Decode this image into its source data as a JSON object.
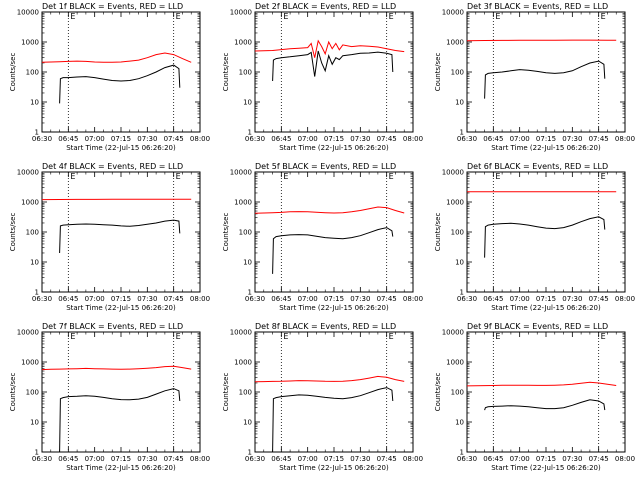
{
  "figure": {
    "ylabel": "Counts/sec",
    "xlabel": "Start Time (22-Jul-15 06:26:20)",
    "x_ticks": [
      "06:30",
      "06:45",
      "07:00",
      "07:15",
      "07:30",
      "07:45",
      "08:00"
    ],
    "y_ticks": [
      "1",
      "10",
      "100",
      "1000",
      "10000"
    ],
    "marker_labels": [
      "E",
      "E"
    ],
    "colors": {
      "events": "#000000",
      "lld": "#ff0000",
      "axes": "#000000",
      "background": "#ffffff"
    }
  },
  "chart_data": [
    {
      "type": "line",
      "title": "Det 1f BLACK = Events, RED = LLD",
      "xlabel": "Start Time (22-Jul-15 06:26:20)",
      "ylabel": "Counts/sec",
      "x_unit": "minutes after 06:30",
      "xlim": [
        0,
        90
      ],
      "ylim": [
        1,
        10000
      ],
      "yscale": "log",
      "vlines": [
        15,
        75
      ],
      "series": [
        {
          "color": "#ff0000",
          "x": [
            0,
            5,
            10,
            15,
            20,
            25,
            30,
            35,
            40,
            45,
            50,
            55,
            60,
            65,
            70,
            75,
            80,
            85
          ],
          "y": [
            210,
            215,
            220,
            225,
            230,
            225,
            215,
            210,
            210,
            215,
            230,
            250,
            300,
            380,
            430,
            380,
            280,
            210
          ]
        },
        {
          "color": "#000000",
          "x": [
            10,
            10.5,
            12,
            15,
            20,
            25,
            30,
            35,
            40,
            45,
            50,
            55,
            60,
            65,
            70,
            75,
            78,
            78.5
          ],
          "y": [
            9,
            60,
            65,
            65,
            68,
            70,
            65,
            58,
            52,
            50,
            52,
            60,
            75,
            100,
            140,
            170,
            130,
            30
          ]
        }
      ]
    },
    {
      "type": "line",
      "title": "Det 2f BLACK = Events, RED = LLD",
      "xlabel": "Start Time (22-Jul-15 06:26:20)",
      "ylabel": "Counts/sec",
      "x_unit": "minutes after 06:30",
      "xlim": [
        0,
        90
      ],
      "ylim": [
        1,
        10000
      ],
      "yscale": "log",
      "vlines": [
        15,
        75
      ],
      "series": [
        {
          "color": "#ff0000",
          "x": [
            0,
            5,
            10,
            15,
            20,
            25,
            30,
            32,
            34,
            36,
            38,
            40,
            42,
            44,
            46,
            48,
            50,
            55,
            60,
            65,
            70,
            75,
            80,
            85
          ],
          "y": [
            500,
            510,
            520,
            560,
            600,
            620,
            650,
            900,
            300,
            1100,
            700,
            400,
            1000,
            600,
            900,
            550,
            800,
            700,
            750,
            720,
            680,
            600,
            520,
            480
          ]
        },
        {
          "color": "#000000",
          "x": [
            10,
            10.5,
            12,
            15,
            20,
            25,
            30,
            32,
            34,
            36,
            38,
            40,
            42,
            44,
            46,
            48,
            50,
            55,
            60,
            65,
            70,
            75,
            78,
            78.5
          ],
          "y": [
            50,
            250,
            280,
            300,
            320,
            350,
            380,
            450,
            70,
            500,
            200,
            110,
            350,
            180,
            300,
            260,
            350,
            380,
            420,
            430,
            460,
            420,
            380,
            100
          ]
        }
      ]
    },
    {
      "type": "line",
      "title": "Det 3f BLACK = Events, RED = LLD",
      "xlabel": "Start Time (22-Jul-15 06:26:20)",
      "ylabel": "Counts/sec",
      "x_unit": "minutes after 06:30",
      "xlim": [
        0,
        90
      ],
      "ylim": [
        1,
        10000
      ],
      "yscale": "log",
      "vlines": [
        15,
        75
      ],
      "series": [
        {
          "color": "#ff0000",
          "x": [
            0,
            10,
            20,
            30,
            40,
            50,
            60,
            70,
            80,
            85
          ],
          "y": [
            1100,
            1120,
            1130,
            1140,
            1150,
            1150,
            1160,
            1160,
            1150,
            1140
          ]
        },
        {
          "color": "#000000",
          "x": [
            10,
            10.5,
            12,
            15,
            20,
            25,
            30,
            35,
            40,
            45,
            50,
            55,
            60,
            65,
            70,
            75,
            78,
            78.5
          ],
          "y": [
            13,
            80,
            90,
            95,
            100,
            110,
            120,
            115,
            105,
            95,
            90,
            95,
            110,
            150,
            200,
            230,
            180,
            60
          ]
        }
      ]
    },
    {
      "type": "line",
      "title": "Det 4f BLACK = Events, RED = LLD",
      "xlabel": "Start Time (22-Jul-15 06:26:20)",
      "ylabel": "Counts/sec",
      "x_unit": "minutes after 06:30",
      "xlim": [
        0,
        90
      ],
      "ylim": [
        1,
        10000
      ],
      "yscale": "log",
      "vlines": [
        15,
        75
      ],
      "series": [
        {
          "color": "#ff0000",
          "x": [
            0,
            10,
            20,
            30,
            40,
            50,
            60,
            70,
            80,
            85
          ],
          "y": [
            1200,
            1210,
            1220,
            1220,
            1230,
            1230,
            1240,
            1240,
            1230,
            1230
          ]
        },
        {
          "color": "#000000",
          "x": [
            10,
            10.5,
            12,
            15,
            20,
            25,
            30,
            35,
            40,
            45,
            50,
            55,
            60,
            65,
            70,
            75,
            78,
            78.5
          ],
          "y": [
            20,
            160,
            170,
            175,
            180,
            185,
            180,
            175,
            170,
            160,
            155,
            165,
            180,
            200,
            230,
            250,
            230,
            90
          ]
        }
      ]
    },
    {
      "type": "line",
      "title": "Det 5f BLACK = Events, RED = LLD",
      "xlabel": "Start Time (22-Jul-15 06:26:20)",
      "ylabel": "Counts/sec",
      "x_unit": "minutes after 06:30",
      "xlim": [
        0,
        90
      ],
      "ylim": [
        1,
        10000
      ],
      "yscale": "log",
      "vlines": [
        15,
        75
      ],
      "series": [
        {
          "color": "#ff0000",
          "x": [
            0,
            5,
            10,
            15,
            20,
            25,
            30,
            35,
            40,
            45,
            50,
            55,
            60,
            65,
            70,
            75,
            80,
            85
          ],
          "y": [
            420,
            430,
            440,
            450,
            470,
            480,
            470,
            455,
            440,
            430,
            440,
            470,
            520,
            600,
            680,
            650,
            520,
            430
          ]
        },
        {
          "color": "#000000",
          "x": [
            10,
            10.5,
            12,
            15,
            20,
            25,
            30,
            35,
            40,
            45,
            50,
            55,
            60,
            65,
            70,
            75,
            78,
            78.5
          ],
          "y": [
            4,
            60,
            70,
            75,
            80,
            82,
            80,
            72,
            65,
            62,
            60,
            65,
            75,
            95,
            120,
            140,
            110,
            70
          ]
        }
      ]
    },
    {
      "type": "line",
      "title": "Det 6f BLACK = Events, RED = LLD",
      "xlabel": "Start Time (22-Jul-15 06:26:20)",
      "ylabel": "Counts/sec",
      "x_unit": "minutes after 06:30",
      "xlim": [
        0,
        90
      ],
      "ylim": [
        1,
        10000
      ],
      "yscale": "log",
      "vlines": [
        15,
        75
      ],
      "series": [
        {
          "color": "#ff0000",
          "x": [
            0,
            10,
            20,
            30,
            40,
            50,
            60,
            70,
            80,
            85
          ],
          "y": [
            2200,
            2200,
            2200,
            2200,
            2210,
            2210,
            2210,
            2210,
            2200,
            2200
          ]
        },
        {
          "color": "#000000",
          "x": [
            10,
            10.5,
            12,
            15,
            20,
            25,
            30,
            35,
            40,
            45,
            50,
            55,
            60,
            65,
            70,
            75,
            78,
            78.5
          ],
          "y": [
            14,
            150,
            170,
            180,
            190,
            195,
            185,
            170,
            150,
            135,
            130,
            140,
            170,
            220,
            280,
            320,
            260,
            120
          ]
        }
      ]
    },
    {
      "type": "line",
      "title": "Det 7f BLACK = Events, RED = LLD",
      "xlabel": "Start Time (22-Jul-15 06:26:20)",
      "ylabel": "Counts/sec",
      "x_unit": "minutes after 06:30",
      "xlim": [
        0,
        90
      ],
      "ylim": [
        1,
        10000
      ],
      "yscale": "log",
      "vlines": [
        15,
        75
      ],
      "series": [
        {
          "color": "#ff0000",
          "x": [
            0,
            5,
            10,
            15,
            20,
            25,
            30,
            35,
            40,
            45,
            50,
            55,
            60,
            65,
            70,
            75,
            80,
            85
          ],
          "y": [
            560,
            570,
            580,
            590,
            600,
            610,
            600,
            590,
            580,
            570,
            580,
            600,
            620,
            650,
            700,
            720,
            650,
            580
          ]
        },
        {
          "color": "#000000",
          "x": [
            10,
            10.5,
            12,
            15,
            20,
            25,
            30,
            35,
            40,
            45,
            50,
            55,
            60,
            65,
            70,
            75,
            78,
            78.5
          ],
          "y": [
            1,
            60,
            65,
            70,
            72,
            75,
            72,
            66,
            60,
            56,
            55,
            58,
            66,
            85,
            110,
            130,
            110,
            50
          ]
        }
      ]
    },
    {
      "type": "line",
      "title": "Det 8f BLACK = Events, RED = LLD",
      "xlabel": "Start Time (22-Jul-15 06:26:20)",
      "ylabel": "Counts/sec",
      "x_unit": "minutes after 06:30",
      "xlim": [
        0,
        90
      ],
      "ylim": [
        1,
        10000
      ],
      "yscale": "log",
      "vlines": [
        15,
        75
      ],
      "series": [
        {
          "color": "#ff0000",
          "x": [
            0,
            5,
            10,
            15,
            20,
            25,
            30,
            35,
            40,
            45,
            50,
            55,
            60,
            65,
            70,
            75,
            80,
            85
          ],
          "y": [
            220,
            222,
            225,
            228,
            232,
            240,
            238,
            232,
            228,
            225,
            228,
            240,
            260,
            290,
            330,
            310,
            260,
            225
          ]
        },
        {
          "color": "#000000",
          "x": [
            10,
            10.5,
            12,
            15,
            20,
            25,
            30,
            35,
            40,
            45,
            50,
            55,
            60,
            65,
            70,
            75,
            78,
            78.5
          ],
          "y": [
            1,
            60,
            65,
            70,
            75,
            80,
            78,
            72,
            66,
            62,
            60,
            65,
            75,
            95,
            120,
            140,
            115,
            50
          ]
        }
      ]
    },
    {
      "type": "line",
      "title": "Det 9f BLACK = Events, RED = LLD",
      "xlabel": "Start Time (22-Jul-15 06:26:20)",
      "ylabel": "Counts/sec",
      "x_unit": "minutes after 06:30",
      "xlim": [
        0,
        90
      ],
      "ylim": [
        1,
        10000
      ],
      "yscale": "log",
      "vlines": [
        15,
        75
      ],
      "series": [
        {
          "color": "#ff0000",
          "x": [
            0,
            5,
            10,
            15,
            20,
            25,
            30,
            35,
            40,
            45,
            50,
            55,
            60,
            65,
            70,
            75,
            80,
            85
          ],
          "y": [
            160,
            162,
            164,
            165,
            167,
            168,
            168,
            167,
            166,
            166,
            168,
            172,
            180,
            195,
            210,
            200,
            180,
            165
          ]
        },
        {
          "color": "#000000",
          "x": [
            10,
            10.5,
            12,
            15,
            20,
            25,
            30,
            35,
            40,
            45,
            50,
            55,
            60,
            65,
            70,
            75,
            78,
            78.5
          ],
          "y": [
            25,
            30,
            32,
            33,
            34,
            35,
            34,
            32,
            30,
            28,
            28,
            30,
            36,
            45,
            55,
            50,
            40,
            25
          ]
        }
      ]
    }
  ]
}
